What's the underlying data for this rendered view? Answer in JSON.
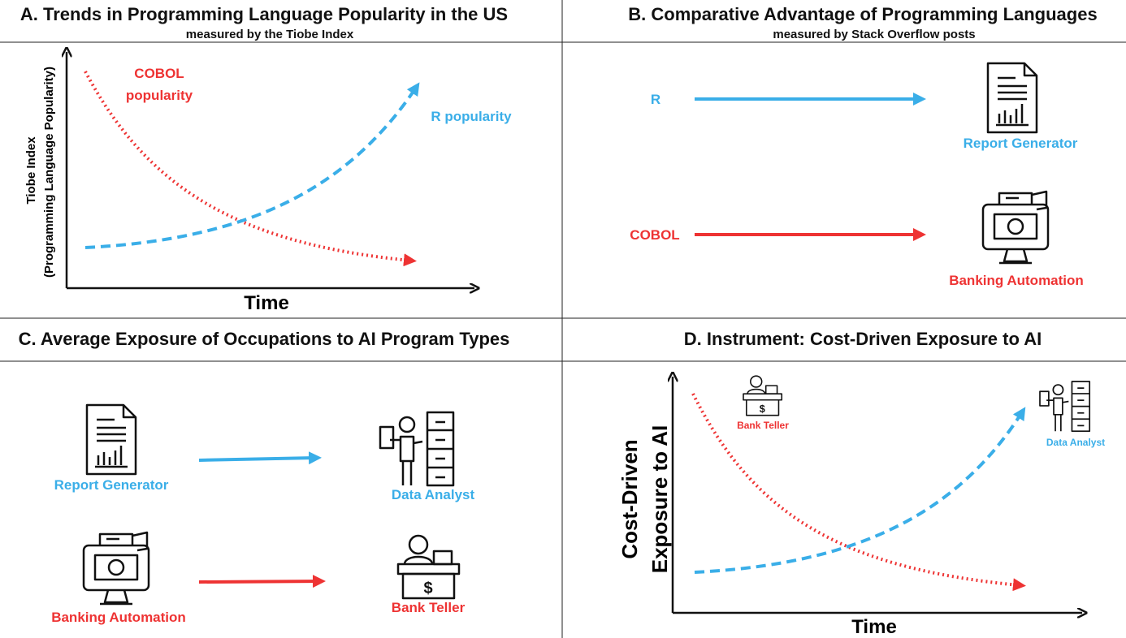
{
  "panels": [
    {
      "title": "A. Trends in Programming Language Popularity in the US",
      "subtitle": "measured by the Tiobe Index",
      "y_label": [
        "Tiobe Index",
        "(Programming Language Popularity)"
      ],
      "x_label": "Time",
      "annotations": [
        "COBOL",
        "popularity",
        "R popularity"
      ]
    },
    {
      "title": "B. Comparative Advantage of Programming Languages",
      "subtitle": "measured by Stack Overflow posts",
      "rows": [
        {
          "from": "R",
          "to": "Report Generator"
        },
        {
          "from": "COBOL",
          "to": "Banking Automation"
        }
      ]
    },
    {
      "title": "C. Average Exposure of Occupations to AI Program Types",
      "rows": [
        {
          "from": "Report Generator",
          "to": "Data Analyst"
        },
        {
          "from": "Banking Automation",
          "to": "Bank Teller"
        }
      ]
    },
    {
      "title": "D. Instrument: Cost-Driven Exposure to AI",
      "y_label": [
        "Cost-Driven",
        "Exposure to AI"
      ],
      "x_label": "Time",
      "annotations": [
        "Bank Teller",
        "Data Analyst"
      ]
    }
  ]
}
